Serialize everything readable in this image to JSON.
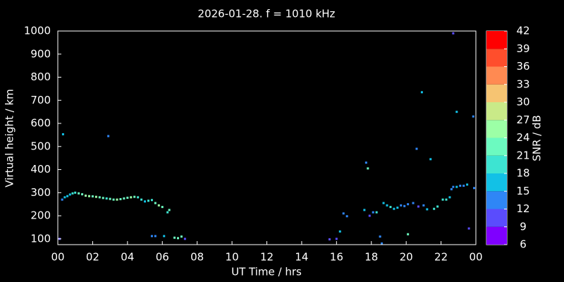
{
  "chart_data": {
    "type": "scatter",
    "title": "2026-01-28. f = 1010 kHz",
    "x_label": "UT Time / hrs",
    "y_label": "Virtual height / km",
    "colorbar_label": "SNR / dB",
    "xlim": [
      0,
      24
    ],
    "xticks": [
      {
        "value": 0,
        "label": "00"
      },
      {
        "value": 2,
        "label": "02"
      },
      {
        "value": 4,
        "label": "04"
      },
      {
        "value": 6,
        "label": "06"
      },
      {
        "value": 8,
        "label": "08"
      },
      10,
      12,
      14,
      16,
      18,
      20,
      22,
      {
        "value": 24,
        "label": "00"
      }
    ],
    "ylim": [
      75,
      1000
    ],
    "yticks": [
      100,
      200,
      300,
      400,
      500,
      600,
      700,
      800,
      900,
      1000
    ],
    "clim": [
      6,
      42
    ],
    "cticks": [
      6,
      9,
      12,
      15,
      18,
      21,
      24,
      27,
      30,
      33,
      36,
      39,
      42
    ],
    "colormap": [
      "#7f00ff",
      "#5a4cfd",
      "#2f86f6",
      "#12c1e6",
      "#3de4d2",
      "#6cfac0",
      "#9cffa6",
      "#c9ea88",
      "#f6c472",
      "#ff8a52",
      "#ff4e2c",
      "#ff0000"
    ],
    "x": [
      0.1,
      0.25,
      0.4,
      0.55,
      0.7,
      0.85,
      1.0,
      1.2,
      1.4,
      1.6,
      1.8,
      2.0,
      2.2,
      2.4,
      2.6,
      2.8,
      3.0,
      3.2,
      3.4,
      3.6,
      3.8,
      4.0,
      4.2,
      4.4,
      4.6,
      4.8,
      5.0,
      5.2,
      5.4,
      5.6,
      5.8,
      6.0,
      6.3,
      6.4,
      0.3,
      2.9,
      5.4,
      5.6,
      6.1,
      6.7,
      6.9,
      7.1,
      7.3,
      15.6,
      16.0,
      16.2,
      16.4,
      16.6,
      17.6,
      17.7,
      17.8,
      17.9,
      18.1,
      18.3,
      18.5,
      18.6,
      18.7,
      18.9,
      19.1,
      19.3,
      19.5,
      19.7,
      19.9,
      20.1,
      20.1,
      20.4,
      20.6,
      20.7,
      20.9,
      21.0,
      21.2,
      21.4,
      21.6,
      21.8,
      22.1,
      22.3,
      22.5,
      22.6,
      22.7,
      22.9,
      22.9,
      23.1,
      23.3,
      23.5,
      22.7,
      23.6,
      23.85,
      23.9
    ],
    "y": [
      100,
      270,
      280,
      285,
      292,
      297,
      300,
      297,
      293,
      287,
      285,
      284,
      282,
      280,
      277,
      275,
      273,
      270,
      270,
      272,
      275,
      278,
      280,
      282,
      280,
      270,
      262,
      265,
      268,
      255,
      245,
      238,
      215,
      225,
      553,
      545,
      112,
      112,
      112,
      105,
      103,
      110,
      100,
      98,
      100,
      132,
      210,
      198,
      225,
      430,
      405,
      200,
      215,
      215,
      110,
      80,
      255,
      245,
      238,
      230,
      235,
      245,
      242,
      120,
      250,
      255,
      490,
      240,
      735,
      245,
      228,
      445,
      230,
      240,
      270,
      270,
      280,
      315,
      325,
      325,
      650,
      330,
      330,
      335,
      990,
      145,
      630,
      320
    ],
    "snr": [
      10,
      14,
      15,
      16,
      17,
      18,
      20,
      22,
      23,
      24,
      24,
      23,
      24,
      22,
      21,
      19,
      21,
      23,
      24,
      23,
      21,
      22,
      24,
      22,
      20,
      19,
      17,
      18,
      20,
      22,
      24,
      23,
      19,
      21,
      17,
      14,
      12,
      12,
      16,
      21,
      23,
      22,
      10,
      10,
      10,
      16,
      12,
      13,
      16,
      12,
      23,
      10,
      12,
      20,
      14,
      12,
      17,
      15,
      18,
      15,
      16,
      14,
      13,
      23,
      14,
      13,
      12,
      11,
      16,
      14,
      16,
      17,
      18,
      20,
      19,
      20,
      17,
      14,
      13,
      15,
      15,
      13,
      14,
      15,
      10,
      10,
      12,
      13
    ]
  }
}
